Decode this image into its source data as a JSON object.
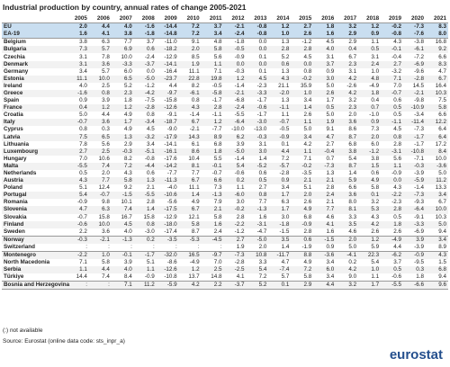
{
  "title": "Industrial production by country, annual rates of change 2005-2021",
  "table": {
    "columns": [
      "2005",
      "2006",
      "2007",
      "2008",
      "2009",
      "2010",
      "2011",
      "2012",
      "2013",
      "2014",
      "2015",
      "2016",
      "2017",
      "2018",
      "2019",
      "2020",
      "2021"
    ],
    "rows": [
      [
        "EU",
        "2.0",
        "4.4",
        "4.0",
        "-1.6",
        "-14.4",
        "7.2",
        "3.7",
        "-2.1",
        "-0.8",
        "1.2",
        "2.7",
        "1.8",
        "3.2",
        "1.2",
        "-0.2",
        "-7.3",
        "8.3"
      ],
      [
        "EA-19",
        "1.6",
        "4.1",
        "3.8",
        "-1.8",
        "-14.8",
        "7.2",
        "3.4",
        "-2.4",
        "-0.8",
        "1.0",
        "2.6",
        "1.6",
        "2.9",
        "0.9",
        "-0.8",
        "-7.6",
        "8.0"
      ],
      [
        "Belgium",
        "3.8",
        "6.3",
        "7.7",
        "3.7",
        "-11.0",
        "9.1",
        "4.8",
        "-1.8",
        "0.0",
        "1.3",
        "-1.2",
        "4.5",
        "2.9",
        "1.1",
        "4.3",
        "-3.8",
        "16.8"
      ],
      [
        "Bulgaria",
        "7.3",
        "5.7",
        "6.9",
        "0.6",
        "-18.2",
        "2.0",
        "5.8",
        "-0.5",
        "0.0",
        "2.8",
        "2.8",
        "4.0",
        "0.4",
        "0.5",
        "-0.1",
        "-6.1",
        "9.2"
      ],
      [
        "Czechia",
        "3.1",
        "7.8",
        "10.0",
        "-2.4",
        "-12.9",
        "8.5",
        "5.6",
        "-0.9",
        "0.1",
        "5.2",
        "4.5",
        "3.1",
        "6.7",
        "3.1",
        "-0.4",
        "-7.2",
        "6.6"
      ],
      [
        "Denmark",
        "3.1",
        "3.6",
        "-3.3",
        "-3.7",
        "-14.1",
        "1.9",
        "1.1",
        "0.0",
        "0.0",
        "0.6",
        "0.0",
        "3.7",
        "2.3",
        "2.4",
        "2.7",
        "-6.9",
        "8.3"
      ],
      [
        "Germany",
        "3.4",
        "5.7",
        "6.0",
        "0.0",
        "-16.4",
        "11.1",
        "7.1",
        "-0.3",
        "0.1",
        "1.3",
        "0.8",
        "0.9",
        "3.1",
        "1.0",
        "-3.2",
        "-9.6",
        "4.7"
      ],
      [
        "Estonia",
        "11.1",
        "10.0",
        "6.5",
        "-5.0",
        "-23.7",
        "22.8",
        "19.8",
        "1.2",
        "4.5",
        "4.3",
        "-0.2",
        "3.0",
        "4.2",
        "4.8",
        "7.1",
        "-2.8",
        "6.7"
      ],
      [
        "Ireland",
        "4.0",
        "2.5",
        "5.2",
        "-1.2",
        "4.4",
        "8.2",
        "-0.5",
        "-1.4",
        "-2.3",
        "21.1",
        "35.9",
        "5.0",
        "-2.6",
        "-4.9",
        "7.0",
        "14.5",
        "16.4"
      ],
      [
        "Greece",
        "-1.6",
        "0.8",
        "2.3",
        "-4.2",
        "-9.7",
        "-6.1",
        "-5.8",
        "-2.1",
        "-3.3",
        "-2.0",
        "1.0",
        "2.6",
        "4.2",
        "1.8",
        "-0.7",
        "-2.1",
        "10.3"
      ],
      [
        "Spain",
        "0.9",
        "3.9",
        "1.8",
        "-7.5",
        "-15.8",
        "0.8",
        "-1.7",
        "-6.8",
        "-1.7",
        "1.3",
        "3.4",
        "1.7",
        "3.2",
        "0.4",
        "0.6",
        "-9.8",
        "7.5"
      ],
      [
        "France",
        "0.4",
        "1.2",
        "1.2",
        "-2.8",
        "-12.6",
        "4.3",
        "2.8",
        "-2.4",
        "-0.6",
        "-1.1",
        "1.4",
        "0.5",
        "2.3",
        "0.7",
        "0.5",
        "-10.9",
        "5.8"
      ],
      [
        "Croatia",
        "5.0",
        "4.4",
        "4.9",
        "0.8",
        "-9.1",
        "-1.4",
        "-1.1",
        "-5.5",
        "-1.7",
        "1.1",
        "2.6",
        "5.0",
        "2.0",
        "-1.0",
        "0.5",
        "-3.4",
        "6.6"
      ],
      [
        "Italy",
        "-0.7",
        "3.6",
        "1.7",
        "-3.4",
        "-18.7",
        "6.7",
        "1.2",
        "-6.4",
        "-3.0",
        "-0.7",
        "1.1",
        "1.9",
        "3.6",
        "0.9",
        "-1.1",
        "-11.4",
        "12.2"
      ],
      [
        "Cyprus",
        "0.8",
        "0.3",
        "4.9",
        "4.5",
        "-9.0",
        "-2.1",
        "-7.7",
        "-10.0",
        "-13.0",
        "-0.5",
        "5.0",
        "9.1",
        "8.6",
        "7.3",
        "4.5",
        "-7.3",
        "6.4"
      ],
      [
        "Latvia",
        "7.5",
        "6.5",
        "1.3",
        "-3.2",
        "-17.9",
        "14.3",
        "8.9",
        "6.2",
        "-0.3",
        "-0.9",
        "3.4",
        "4.7",
        "8.7",
        "2.0",
        "0.8",
        "-1.7",
        "6.4"
      ],
      [
        "Lithuania",
        "7.8",
        "5.6",
        "2.9",
        "3.4",
        "-14.1",
        "6.1",
        "6.8",
        "3.9",
        "3.1",
        "0.1",
        "4.2",
        "2.7",
        "6.8",
        "6.0",
        "2.8",
        "-1.7",
        "17.2"
      ],
      [
        "Luxembourg",
        "2.7",
        "2.5",
        "-0.3",
        "-5.1",
        "-16.1",
        "8.6",
        "1.8",
        "-5.0",
        "3.0",
        "4.4",
        "1.1",
        "-0.4",
        "3.8",
        "-1.2",
        "-3.1",
        "-10.8",
        "8.4"
      ],
      [
        "Hungary",
        "7.0",
        "10.6",
        "8.2",
        "-0.8",
        "-17.6",
        "10.4",
        "5.5",
        "-1.4",
        "1.4",
        "7.2",
        "7.1",
        "0.7",
        "5.4",
        "3.8",
        "5.6",
        "-7.1",
        "10.0"
      ],
      [
        "Malta",
        "-5.5",
        "7.4",
        "7.2",
        "-4.4",
        "-14.2",
        "8.1",
        "-0.1",
        "5.4",
        "-5.2",
        "-5.7",
        "-0.2",
        "-7.3",
        "8.7",
        "1.5",
        "1.1",
        "-0.3",
        "-3.6"
      ],
      [
        "Netherlands",
        "0.5",
        "2.0",
        "4.3",
        "0.6",
        "-7.7",
        "7.7",
        "-0.7",
        "-0.6",
        "0.6",
        "-2.8",
        "-3.5",
        "1.3",
        "1.4",
        "0.6",
        "-0.9",
        "-3.9",
        "5.0"
      ],
      [
        "Austria",
        "4.3",
        "7.7",
        "5.8",
        "1.3",
        "-11.3",
        "6.7",
        "6.6",
        "0.2",
        "0.5",
        "0.9",
        "2.1",
        "2.1",
        "5.9",
        "4.9",
        "0.0",
        "-5.9",
        "11.2"
      ],
      [
        "Poland",
        "5.1",
        "12.4",
        "9.2",
        "2.1",
        "-4.0",
        "11.1",
        "7.3",
        "1.1",
        "2.7",
        "3.4",
        "5.1",
        "2.8",
        "6.6",
        "5.8",
        "4.3",
        "-1.4",
        "13.3"
      ],
      [
        "Portugal",
        "5.4",
        "-0.7",
        "-1.5",
        "-5.5",
        "-10.6",
        "1.4",
        "-1.3",
        "-6.0",
        "0.8",
        "1.7",
        "2.0",
        "2.4",
        "3.6",
        "0.1",
        "-2.2",
        "-7.3",
        "3.4"
      ],
      [
        "Romania",
        "-0.9",
        "9.8",
        "10.1",
        "2.8",
        "-5.6",
        "4.9",
        "7.9",
        "3.0",
        "7.7",
        "6.3",
        "2.6",
        "2.1",
        "8.0",
        "3.2",
        "-2.3",
        "-9.3",
        "6.7"
      ],
      [
        "Slovenia",
        "4.7",
        "6.3",
        "7.4",
        "1.4",
        "-17.5",
        "6.7",
        "2.1",
        "-0.2",
        "-1.3",
        "1.7",
        "4.9",
        "7.7",
        "8.1",
        "5.3",
        "2.8",
        "-6.4",
        "10.0"
      ],
      [
        "Slovakia",
        "-0.7",
        "15.8",
        "16.7",
        "15.8",
        "-12.9",
        "12.1",
        "5.8",
        "2.8",
        "1.6",
        "3.0",
        "6.8",
        "4.6",
        "3.3",
        "4.3",
        "0.5",
        "-9.1",
        "10.3"
      ],
      [
        "Finland",
        "-0.6",
        "10.0",
        "4.5",
        "0.8",
        "-18.0",
        "5.8",
        "1.6",
        "-2.2",
        "-3.1",
        "-1.8",
        "-0.9",
        "4.1",
        "3.5",
        "4.2",
        "1.8",
        "-3.3",
        "5.0"
      ],
      [
        "Sweden",
        "2.2",
        "3.6",
        "4.0",
        "-3.0",
        "-17.4",
        "8.7",
        "2.4",
        "-1.2",
        "-4.7",
        "-1.5",
        "2.8",
        "1.6",
        "4.6",
        "2.6",
        "2.6",
        "-6.9",
        "9.4"
      ],
      [
        "Norway",
        "-0.3",
        "-2.1",
        "-1.3",
        "0.2",
        "-3.5",
        "-5.3",
        "-4.5",
        "2.7",
        "-5.0",
        "3.5",
        "0.6",
        "-1.5",
        "2.0",
        "1.2",
        "-4.9",
        "3.9",
        "3.4"
      ],
      [
        "Switzerland",
        ":",
        ":",
        ":",
        ":",
        ":",
        ":",
        ":",
        "1.9",
        "2.0",
        "1.4",
        "-1.9",
        "0.9",
        "5.0",
        "5.9",
        "4.4",
        "-3.9",
        "8.9"
      ],
      [
        "Montenegro",
        "-2.2",
        "1.0",
        "-0.1",
        "-1.7",
        "-32.0",
        "16.5",
        "-9.7",
        "-7.3",
        "10.8",
        "-11.7",
        "8.8",
        "-3.6",
        "-4.1",
        "22.3",
        "-6.2",
        "-0.9",
        "4.3"
      ],
      [
        "North Macedonia",
        "7.1",
        "5.8",
        "3.9",
        "5.1",
        "-8.6",
        "-4.9",
        "7.0",
        "-2.8",
        "3.3",
        "4.7",
        "4.9",
        "3.4",
        "0.2",
        "5.4",
        "3.7",
        "-9.5",
        "1.5"
      ],
      [
        "Serbia",
        "1.1",
        "4.4",
        "4.0",
        "1.1",
        "-12.6",
        "1.2",
        "2.5",
        "-2.5",
        "5.4",
        "-7.4",
        "7.2",
        "6.0",
        "4.2",
        "1.0",
        "0.5",
        "0.3",
        "6.8"
      ],
      [
        "Türkiye",
        "14.4",
        "7.4",
        "8.4",
        "-0.9",
        "-10.8",
        "13.7",
        "14.8",
        "4.1",
        "7.2",
        "5.7",
        "5.8",
        "3.4",
        "9.0",
        "1.1",
        "-0.6",
        "1.8",
        "9.4"
      ],
      [
        "Bosnia and Herzegovina",
        ":",
        ":",
        "7.1",
        "11.2",
        "-5.9",
        "4.2",
        "2.2",
        "-3.7",
        "5.2",
        "0.1",
        "2.9",
        "4.4",
        "3.2",
        "1.7",
        "-5.5",
        "-6.6",
        "9.6"
      ]
    ]
  },
  "notes": [
    "(:) not available",
    "Source: Eurostat (online data code: sts_inpr_a)"
  ],
  "logo": "eurostat"
}
